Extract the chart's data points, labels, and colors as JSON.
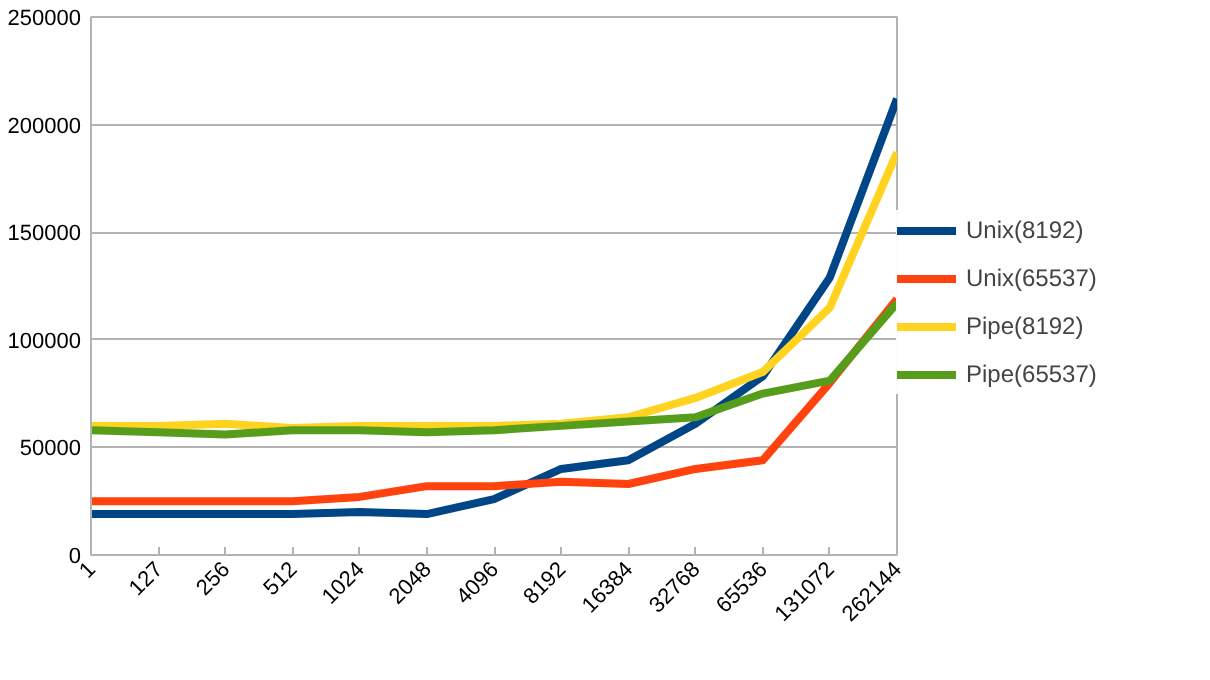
{
  "chart_data": {
    "type": "line",
    "categories": [
      "1",
      "127",
      "256",
      "512",
      "1024",
      "2048",
      "4096",
      "8192",
      "16384",
      "32768",
      "65536",
      "131072",
      "262144"
    ],
    "series": [
      {
        "name": "Unix(8192)",
        "color": "#004586",
        "values": [
          19000,
          19000,
          19000,
          19000,
          20000,
          19000,
          26000,
          40000,
          44000,
          61000,
          83000,
          129000,
          212000
        ]
      },
      {
        "name": "Unix(65537)",
        "color": "#ff420e",
        "values": [
          25000,
          25000,
          25000,
          25000,
          27000,
          32000,
          32000,
          34000,
          33000,
          40000,
          44000,
          80000,
          119000
        ]
      },
      {
        "name": "Pipe(8192)",
        "color": "#ffd320",
        "values": [
          60000,
          60000,
          61000,
          59000,
          60000,
          60000,
          60000,
          61000,
          64000,
          73000,
          85000,
          115000,
          187000
        ]
      },
      {
        "name": "Pipe(65537)",
        "color": "#579d1c",
        "values": [
          58000,
          57000,
          56000,
          58000,
          58000,
          57000,
          58000,
          60000,
          62000,
          64000,
          75000,
          81000,
          117000
        ]
      }
    ],
    "ylim": [
      0,
      250000
    ],
    "yticks": [
      0,
      50000,
      100000,
      150000,
      200000,
      250000
    ],
    "grid": "y",
    "legend": "right",
    "marker": "none",
    "line_style": "solid"
  }
}
